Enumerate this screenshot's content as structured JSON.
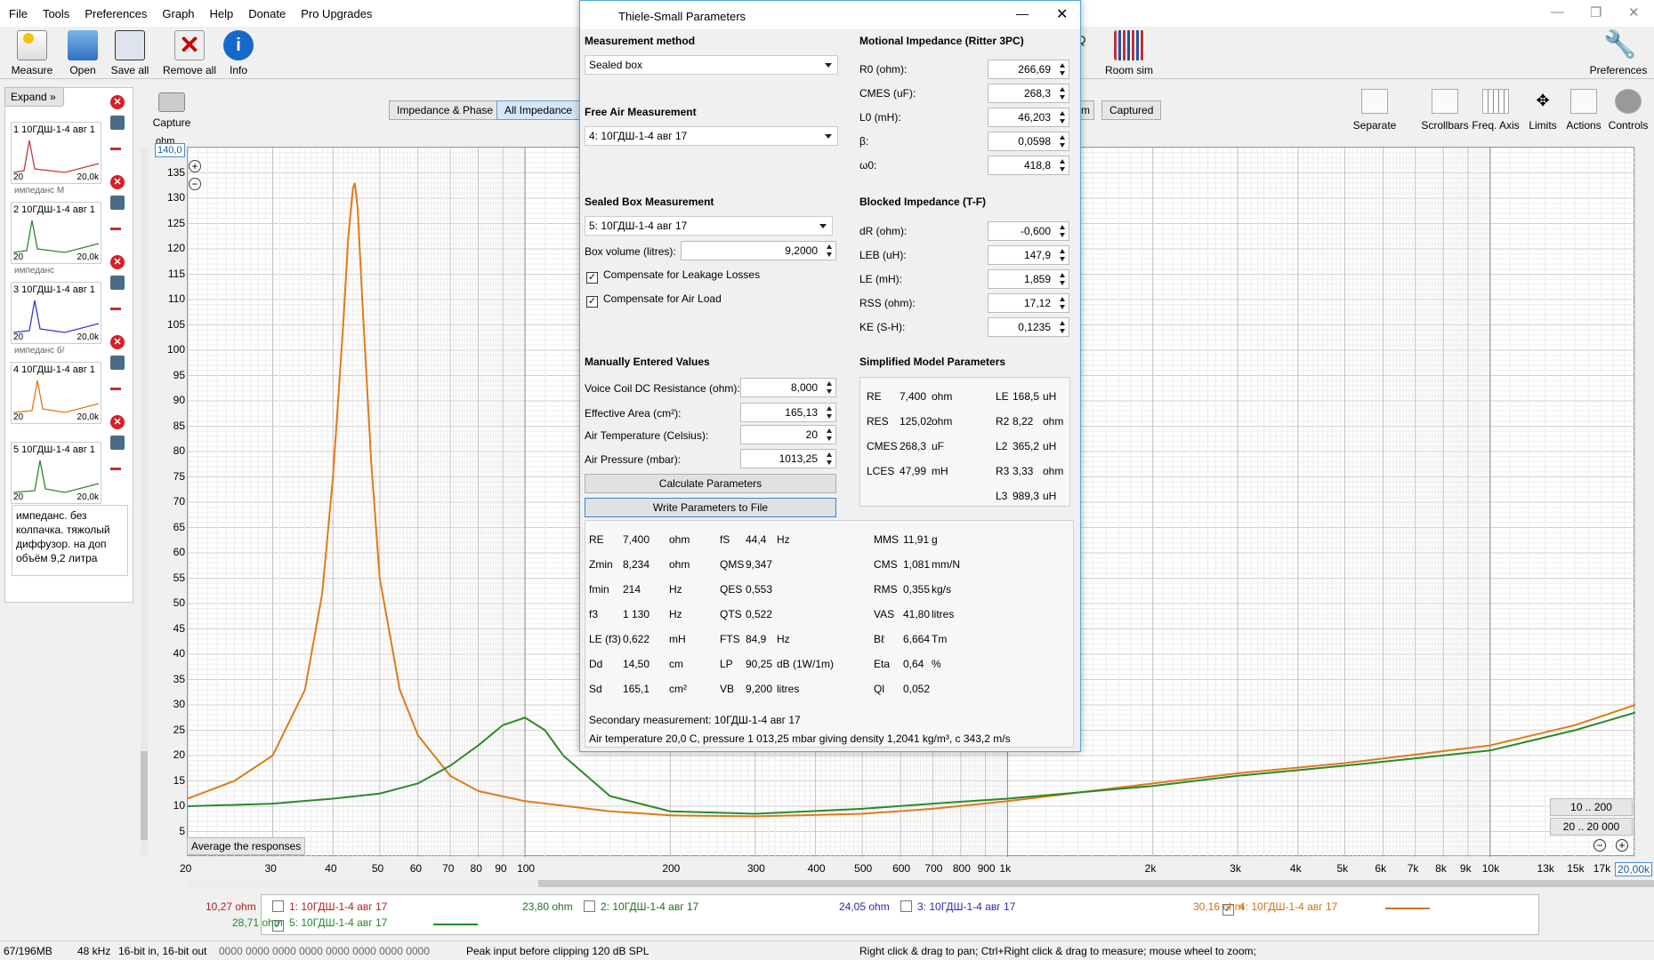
{
  "menu": [
    "File",
    "Tools",
    "Preferences",
    "Graph",
    "Help",
    "Donate",
    "Pro Upgrades"
  ],
  "toolbar": {
    "measure": "Measure",
    "open": "Open",
    "save_all": "Save all",
    "remove_all": "Remove all",
    "info": "Info",
    "capture": "Capture",
    "room_sim": "Room sim",
    "preferences": "Preferences"
  },
  "left_panel": {
    "expand": "Expand",
    "thumbs": [
      {
        "title": "1 10ГДШ-1-4 авг 1",
        "from": "20",
        "to": "20,0k",
        "sub": "импеданс М",
        "color": "#c23a3a"
      },
      {
        "title": "2 10ГДШ-1-4 авг 1",
        "from": "20",
        "to": "20,0k",
        "sub": "импеданс",
        "color": "#2a8a2a"
      },
      {
        "title": "3 10ГДШ-1-4 авг 1",
        "from": "20",
        "to": "20,0k",
        "sub": "импеданс б/",
        "color": "#3a3ac8"
      },
      {
        "title": "4 10ГДШ-1-4 авг 1",
        "from": "20",
        "to": "20,0k",
        "sub": "",
        "color": "#e07a16"
      },
      {
        "title": "5 10ГДШ-1-4 авг 1",
        "from": "20",
        "to": "20,0k",
        "sub": "",
        "color": "#2a8a2a"
      }
    ],
    "note": "импеданс. без колпачка. тяжолый диффузор. на доп объём 9,2 литра"
  },
  "graph": {
    "tabs": [
      "Impedance & Phase",
      "All Impedance",
      "m",
      "Captured"
    ],
    "y_unit": "ohm",
    "y_top": "140,0",
    "y_ticks": [
      "135",
      "130",
      "125",
      "120",
      "115",
      "110",
      "105",
      "100",
      "95",
      "90",
      "85",
      "80",
      "75",
      "70",
      "65",
      "60",
      "55",
      "50",
      "45",
      "40",
      "35",
      "30",
      "25",
      "20",
      "15",
      "10",
      "5"
    ],
    "x_ticks": [
      "20",
      "30",
      "40",
      "50",
      "60",
      "70",
      "80",
      "90",
      "100",
      "200",
      "300",
      "400",
      "500",
      "600",
      "700",
      "800",
      "900",
      "1k",
      "2k",
      "3k",
      "4k",
      "5k",
      "6k",
      "7k",
      "8k",
      "9k",
      "10k",
      "13k",
      "15k",
      "17k",
      "20,00k"
    ],
    "avg_button": "Average the responses",
    "range1": "10 .. 200",
    "range2": "20 .. 20 000",
    "q_label": "Q"
  },
  "right_tools": [
    "Separate",
    "Scrollbars",
    "Freq. Axis",
    "Limits",
    "Actions",
    "Controls"
  ],
  "legend": [
    {
      "name": "1: 10ГДШ-1-4 авг 17",
      "val": "10,27 ohm",
      "color": "#b02020",
      "checked": false
    },
    {
      "name": "2: 10ГДШ-1-4 авг 17",
      "val": "23,80 ohm",
      "color": "#1f6f1f",
      "checked": false
    },
    {
      "name": "3: 10ГДШ-1-4 авг 17",
      "val": "24,05 ohm",
      "color": "#2a2ab8",
      "checked": false
    },
    {
      "name": "4: 10ГДШ-1-4 авг 17",
      "val": "30,16 ohm",
      "color": "#d07010",
      "checked": true
    },
    {
      "name": "5: 10ГДШ-1-4 авг 17",
      "val": "28,71 ohm",
      "color": "#1f8a1f",
      "checked": true
    }
  ],
  "status": {
    "mem": "67/196MB",
    "rate": "48 kHz",
    "bits": "16-bit in, 16-bit out",
    "levels": "0000 0000  0000 0000  0000 0000  0000 0000",
    "peak": "Peak input before clipping 120 dB SPL",
    "hint": "Right click & drag to pan; Ctrl+Right click & drag to measure; mouse wheel to zoom;"
  },
  "dialog": {
    "title": "Thiele-Small Parameters",
    "measurement_method_label": "Measurement method",
    "measurement_method": "Sealed box",
    "free_air_label": "Free Air Measurement",
    "free_air": "4: 10ГДШ-1-4 авг 17",
    "sealed_label": "Sealed Box Measurement",
    "sealed": "5: 10ГДШ-1-4 авг 17",
    "box_volume_label": "Box volume (litres):",
    "box_volume": "9,2000",
    "leak_label": "Compensate for Leakage Losses",
    "airload_label": "Compensate for Air Load",
    "manual_label": "Manually Entered Values",
    "vc_label": "Voice Coil DC Resistance (ohm):",
    "vc": "8,000",
    "area_label": "Effective Area (cm²):",
    "area": "165,13",
    "temp_label": "Air Temperature (Celsius):",
    "temp": "20",
    "pressure_label": "Air Pressure (mbar):",
    "pressure": "1013,25",
    "calc_button": "Calculate Parameters",
    "write_button": "Write Parameters to File",
    "motional_label": "Motional Impedance (Ritter 3PC)",
    "motional": [
      {
        "label": "R0 (ohm):",
        "v": "266,69"
      },
      {
        "label": "CMES (uF):",
        "v": "268,3"
      },
      {
        "label": "L0 (mH):",
        "v": "46,203"
      },
      {
        "label": "β:",
        "v": "0,0598"
      },
      {
        "label": "ω0:",
        "v": "418,8"
      }
    ],
    "blocked_label": "Blocked Impedance (T-F)",
    "blocked": [
      {
        "label": "dR (ohm):",
        "v": "-0,600"
      },
      {
        "label": "LEB (uH):",
        "v": "147,9"
      },
      {
        "label": "LE (mH):",
        "v": "1,859"
      },
      {
        "label": "RSS (ohm):",
        "v": "17,12"
      },
      {
        "label": "KE (S-H):",
        "v": "0,1235"
      }
    ],
    "simplified_label": "Simplified Model Parameters",
    "simplified_left": [
      {
        "n": "RE",
        "v": "7,400",
        "u": "ohm"
      },
      {
        "n": "RES",
        "v": "125,02",
        "u": "ohm"
      },
      {
        "n": "CMES",
        "v": "268,3",
        "u": "uF"
      },
      {
        "n": "LCES",
        "v": "47,99",
        "u": "mH"
      }
    ],
    "simplified_right": [
      {
        "n": "LE",
        "v": "168,5",
        "u": "uH"
      },
      {
        "n": "R2",
        "v": "8,22",
        "u": "ohm"
      },
      {
        "n": "L2",
        "v": "365,2",
        "u": "uH"
      },
      {
        "n": "R3",
        "v": "3,33",
        "u": "ohm"
      },
      {
        "n": "L3",
        "v": "989,3",
        "u": "uH"
      }
    ],
    "results_c1": [
      {
        "n": "RE",
        "v": "7,400",
        "u": "ohm"
      },
      {
        "n": "Zmin",
        "v": "8,234",
        "u": "ohm"
      },
      {
        "n": "fmin",
        "v": "214",
        "u": "Hz"
      },
      {
        "n": "f3",
        "v": "1 130",
        "u": "Hz"
      },
      {
        "n": "LE (f3)",
        "v": "0,622",
        "u": "mH"
      },
      {
        "n": "Dd",
        "v": "14,50",
        "u": "cm"
      },
      {
        "n": "Sd",
        "v": "165,1",
        "u": "cm²"
      }
    ],
    "results_c2": [
      {
        "n": "fS",
        "v": "44,4",
        "u": "Hz"
      },
      {
        "n": "QMS",
        "v": "9,347",
        "u": ""
      },
      {
        "n": "QES",
        "v": "0,553",
        "u": ""
      },
      {
        "n": "QTS",
        "v": "0,522",
        "u": ""
      },
      {
        "n": "FTS",
        "v": "84,9",
        "u": "Hz"
      },
      {
        "n": "LP",
        "v": "90,25",
        "u": "dB (1W/1m)"
      },
      {
        "n": "VB",
        "v": "9,200",
        "u": "litres"
      }
    ],
    "results_c3": [
      {
        "n": "MMS",
        "v": "11,91",
        "u": "g"
      },
      {
        "n": "CMS",
        "v": "1,081",
        "u": "mm/N"
      },
      {
        "n": "RMS",
        "v": "0,355",
        "u": "kg/s"
      },
      {
        "n": "VAS",
        "v": "41,80",
        "u": "litres"
      },
      {
        "n": "Bℓ",
        "v": "6,664",
        "u": "Tm"
      },
      {
        "n": "Eta",
        "v": "0,64",
        "u": "%"
      },
      {
        "n": "Ql",
        "v": "0,052",
        "u": ""
      }
    ],
    "secondary": "Secondary measurement: 10ГДШ-1-4 авг 17",
    "air": "Air temperature 20,0 C, pressure 1 013,25 mbar giving density 1,2041 kg/m³, c 343,2 m/s"
  },
  "chart_data": {
    "type": "line",
    "title": "",
    "xlabel": "",
    "ylabel": "ohm",
    "x_scale": "log",
    "xlim": [
      20,
      20000
    ],
    "ylim": [
      0,
      140
    ],
    "series": [
      {
        "name": "4: 10ГДШ-1-4 авг 17",
        "color": "#e07a16",
        "x": [
          20,
          25,
          30,
          35,
          38,
          40,
          42,
          43,
          44,
          44.4,
          45,
          46,
          48,
          50,
          55,
          60,
          70,
          80,
          100,
          150,
          200,
          300,
          500,
          700,
          1000,
          2000,
          3000,
          5000,
          10000,
          15000,
          20000
        ],
        "y": [
          11.5,
          15,
          20,
          33,
          52,
          75,
          105,
          122,
          132,
          133,
          128,
          110,
          78,
          55,
          33,
          24,
          16,
          13,
          11,
          9,
          8.2,
          8,
          8.5,
          9.5,
          11,
          14.5,
          16.5,
          18.5,
          22,
          26,
          30
        ]
      },
      {
        "name": "5: 10ГДШ-1-4 авг 17",
        "color": "#2a8a2a",
        "x": [
          20,
          30,
          40,
          50,
          60,
          70,
          80,
          90,
          100,
          110,
          120,
          150,
          200,
          300,
          500,
          700,
          1000,
          2000,
          3000,
          5000,
          10000,
          15000,
          20000
        ],
        "y": [
          10,
          10.5,
          11.5,
          12.5,
          14.5,
          18,
          22,
          26,
          27.5,
          25,
          20,
          12,
          9,
          8.5,
          9.5,
          10.5,
          11.5,
          14,
          16,
          18,
          21,
          25,
          28.5
        ]
      }
    ]
  }
}
